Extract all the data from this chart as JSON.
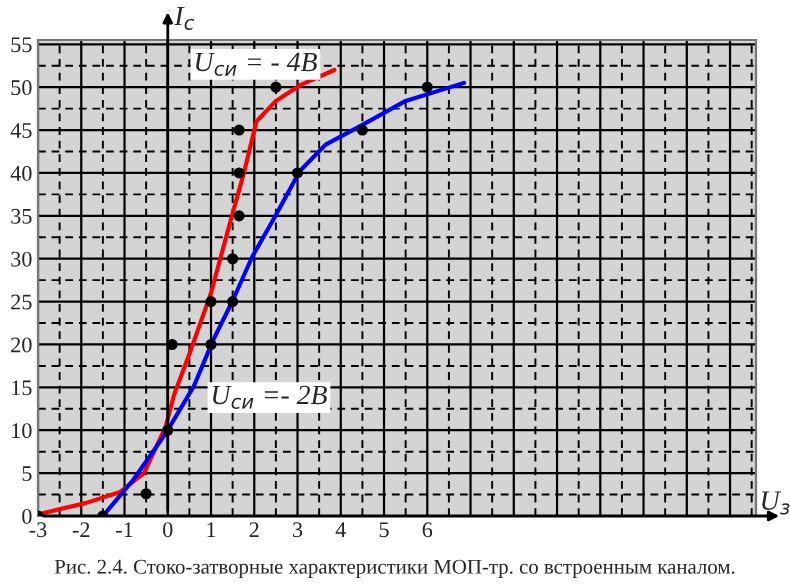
{
  "chart_data": {
    "type": "line",
    "xlabel": "U$_{з}$",
    "ylabel": "I$_{с}$",
    "xlim": [
      -3,
      13.6
    ],
    "ylim": [
      0,
      55.5
    ],
    "xticks": [
      -3,
      -2,
      -1,
      0,
      1,
      2,
      3,
      4,
      5,
      6
    ],
    "yticks": [
      0,
      5,
      10,
      15,
      20,
      25,
      30,
      35,
      40,
      45,
      50,
      55
    ],
    "grid": true,
    "marker": "none",
    "line_style": "solid",
    "series": [
      {
        "name": "U$_{си}$ = - 4В",
        "color": "#ff0000",
        "x": [
          -3,
          -1.9,
          -1.1,
          -0.55,
          -0.05,
          0.15,
          0.5,
          1.0,
          1.45,
          1.75,
          2.05,
          2.5,
          3.05,
          3.85
        ],
        "values": [
          0.2,
          1.5,
          2.8,
          5,
          10.4,
          14.2,
          18.9,
          26,
          34.4,
          39.8,
          46,
          48.4,
          50.2,
          52
        ]
      },
      {
        "name": "U$_{си}$ =- 2В",
        "color": "#0000ff",
        "x": [
          -1.5,
          -0.8,
          -0.05,
          0.6,
          1.05,
          1.5,
          1.95,
          2.5,
          3.05,
          3.65,
          4.5,
          5.5,
          6.85
        ],
        "values": [
          0,
          4.2,
          9.6,
          15.1,
          20.5,
          25.1,
          30.2,
          35.1,
          40.2,
          43.3,
          45.6,
          48.4,
          50.5
        ]
      },
      {
        "type": "scatter",
        "color": "#000000",
        "marker": "circle",
        "x": [
          -3,
          -1.5,
          -0.5,
          0,
          0.1,
          1,
          1,
          1.5,
          1.5,
          1.65,
          1.65,
          1.65,
          2.5,
          3,
          4.5,
          6
        ],
        "values": [
          0,
          0,
          2.6,
          10,
          20,
          20,
          25,
          25,
          30,
          35,
          40,
          45,
          50,
          40,
          45,
          50
        ]
      }
    ],
    "annotations": [
      "Рис. 2.4. Стоко-затворные характеристики МОП-тр. со встроенным каналом."
    ]
  }
}
